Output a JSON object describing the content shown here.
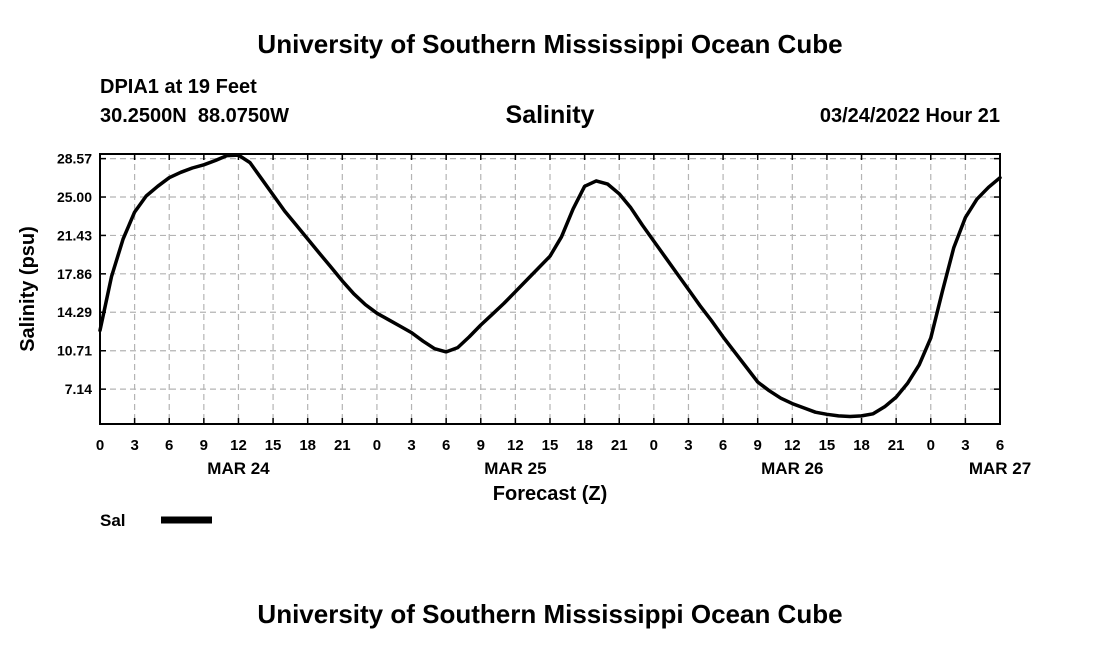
{
  "header": {
    "title_top": "University of Southern Mississippi Ocean Cube",
    "station": "DPIA1 at 19 Feet",
    "coords": "30.2500N  88.0750W",
    "timestamp": "03/24/2022 Hour 21",
    "title_bottom": "University of Southern Mississippi Ocean Cube"
  },
  "chart_data": {
    "type": "line",
    "title": "Salinity",
    "xlabel": "Forecast (Z)",
    "ylabel": "Salinity (psu)",
    "x_unit": "hours since MAR 24 00Z",
    "xlim": [
      0,
      78
    ],
    "ylim": [
      3.9,
      29.0
    ],
    "grid": true,
    "y_ticks": [
      28.57,
      25.0,
      21.43,
      17.86,
      14.29,
      10.71,
      7.14
    ],
    "y_tick_labels": [
      "28.57",
      "25.00",
      "21.43",
      "17.86",
      "14.29",
      "10.71",
      "7.14"
    ],
    "x_ticks": [
      0,
      3,
      6,
      9,
      12,
      15,
      18,
      21,
      24,
      27,
      30,
      33,
      36,
      39,
      42,
      45,
      48,
      51,
      54,
      57,
      60,
      63,
      66,
      69,
      72,
      75,
      78
    ],
    "x_tick_labels": [
      "0",
      "3",
      "6",
      "9",
      "12",
      "15",
      "18",
      "21",
      "0",
      "3",
      "6",
      "9",
      "12",
      "15",
      "18",
      "21",
      "0",
      "3",
      "6",
      "9",
      "12",
      "15",
      "18",
      "21",
      "0",
      "3",
      "6"
    ],
    "date_labels": [
      {
        "x": 12,
        "label": "MAR 24"
      },
      {
        "x": 36,
        "label": "MAR 25"
      },
      {
        "x": 60,
        "label": "MAR 26"
      },
      {
        "x": 78,
        "label": "MAR 27"
      }
    ],
    "legend": {
      "position": "bottom-left",
      "entries": [
        {
          "name": "Sal",
          "color": "#000000"
        }
      ]
    },
    "series": [
      {
        "name": "Sal",
        "color": "#000000",
        "x": [
          0,
          1,
          2,
          3,
          4,
          5,
          6,
          7,
          8,
          9,
          10,
          11,
          12,
          13,
          14,
          15,
          16,
          17,
          18,
          19,
          20,
          21,
          22,
          23,
          24,
          25,
          26,
          27,
          28,
          29,
          30,
          31,
          32,
          33,
          34,
          35,
          36,
          37,
          38,
          39,
          40,
          41,
          42,
          43,
          44,
          45,
          46,
          47,
          48,
          49,
          50,
          51,
          52,
          53,
          54,
          55,
          56,
          57,
          58,
          59,
          60,
          61,
          62,
          63,
          64,
          65,
          66,
          67,
          68,
          69,
          70,
          71,
          72,
          73,
          74,
          75,
          76,
          77,
          78
        ],
        "y": [
          12.6,
          17.6,
          21.1,
          23.6,
          25.1,
          26.0,
          26.8,
          27.3,
          27.7,
          28.0,
          28.4,
          28.85,
          28.9,
          28.2,
          26.7,
          25.2,
          23.7,
          22.4,
          21.1,
          19.8,
          18.5,
          17.2,
          16.0,
          15.0,
          14.2,
          13.6,
          13.0,
          12.4,
          11.6,
          10.9,
          10.6,
          11.0,
          12.0,
          13.1,
          14.1,
          15.1,
          16.2,
          17.3,
          18.4,
          19.5,
          21.3,
          23.9,
          26.0,
          26.5,
          26.2,
          25.3,
          24.0,
          22.4,
          20.9,
          19.4,
          17.9,
          16.4,
          14.9,
          13.5,
          12.0,
          10.6,
          9.2,
          7.8,
          7.0,
          6.3,
          5.8,
          5.4,
          5.0,
          4.8,
          4.65,
          4.6,
          4.65,
          4.85,
          5.5,
          6.4,
          7.7,
          9.4,
          11.9,
          16.2,
          20.3,
          23.1,
          24.8,
          25.9,
          26.8
        ]
      }
    ]
  }
}
